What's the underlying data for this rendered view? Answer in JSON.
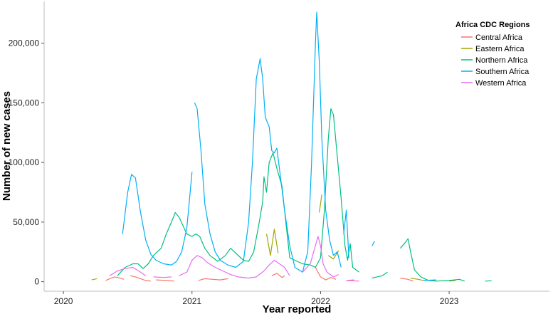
{
  "chart_data": {
    "type": "line",
    "title": "",
    "xlabel": "Year reported",
    "ylabel": "Number of new cases",
    "xlim": [
      2019.85,
      2023.78
    ],
    "ylim": [
      -8000,
      235000
    ],
    "x_ticks": [
      2020,
      2021,
      2022,
      2023
    ],
    "x_tick_labels": [
      "2020",
      "2021",
      "2022",
      "2023"
    ],
    "y_ticks": [
      0,
      50000,
      100000,
      150000,
      200000
    ],
    "y_tick_labels": [
      "0",
      "50,000",
      "100,000",
      "150,000",
      "200,000"
    ],
    "grid": false,
    "legend": {
      "title": "Africa CDC Regions",
      "position": "top-right"
    },
    "series": [
      {
        "name": "Central Africa",
        "color": "#F8766D",
        "segments": [
          [
            [
              2020.33,
              1000
            ],
            [
              2020.36,
              2500
            ],
            [
              2020.4,
              4000
            ],
            [
              2020.44,
              3000
            ],
            [
              2020.47,
              2000
            ]
          ],
          [
            [
              2020.52,
              5000
            ],
            [
              2020.56,
              4000
            ],
            [
              2020.6,
              2500
            ],
            [
              2020.64,
              1000
            ],
            [
              2020.68,
              500
            ]
          ],
          [
            [
              2020.72,
              1500
            ],
            [
              2020.8,
              1000
            ],
            [
              2020.86,
              500
            ]
          ],
          [
            [
              2021.05,
              1000
            ],
            [
              2021.1,
              2500
            ],
            [
              2021.16,
              2000
            ],
            [
              2021.22,
              1500
            ],
            [
              2021.28,
              2500
            ]
          ],
          [
            [
              2021.62,
              5000
            ],
            [
              2021.66,
              7000
            ],
            [
              2021.7,
              3500
            ],
            [
              2021.72,
              5000
            ]
          ],
          [
            [
              2021.96,
              12000
            ],
            [
              2022.0,
              4000
            ],
            [
              2022.04,
              1500
            ],
            [
              2022.08,
              3500
            ],
            [
              2022.12,
              2000
            ]
          ],
          [
            [
              2022.2,
              1000
            ],
            [
              2022.26,
              1500
            ]
          ],
          [
            [
              2022.62,
              3000
            ],
            [
              2022.68,
              2000
            ],
            [
              2022.72,
              500
            ]
          ]
        ]
      },
      {
        "name": "Eastern Africa",
        "color": "#A3A500",
        "segments": [
          [
            [
              2020.22,
              1500
            ],
            [
              2020.26,
              2500
            ]
          ],
          [
            [
              2021.58,
              40000
            ],
            [
              2021.61,
              22000
            ],
            [
              2021.64,
              44000
            ],
            [
              2021.67,
              24000
            ]
          ],
          [
            [
              2021.99,
              58000
            ],
            [
              2022.01,
              73000
            ]
          ],
          [
            [
              2022.06,
              22000
            ],
            [
              2022.1,
              19000
            ],
            [
              2022.14,
              26000
            ]
          ],
          [
            [
              2022.7,
              3000
            ],
            [
              2022.76,
              2000
            ],
            [
              2022.8,
              1000
            ]
          ],
          [
            [
              2023.0,
              500
            ],
            [
              2023.05,
              1000
            ]
          ]
        ]
      },
      {
        "name": "Northern Africa",
        "color": "#00BF7D",
        "segments": [
          [
            [
              2020.42,
              5000
            ],
            [
              2020.48,
              12000
            ],
            [
              2020.54,
              15000
            ],
            [
              2020.58,
              15000
            ],
            [
              2020.62,
              11000
            ],
            [
              2020.66,
              15000
            ],
            [
              2020.7,
              22000
            ],
            [
              2020.76,
              28000
            ],
            [
              2020.8,
              40000
            ],
            [
              2020.84,
              50000
            ],
            [
              2020.87,
              58000
            ],
            [
              2020.9,
              54000
            ],
            [
              2020.93,
              47000
            ],
            [
              2020.96,
              40000
            ],
            [
              2021.0,
              38000
            ],
            [
              2021.03,
              40000
            ],
            [
              2021.06,
              38000
            ],
            [
              2021.1,
              28000
            ],
            [
              2021.14,
              22000
            ],
            [
              2021.2,
              17000
            ],
            [
              2021.26,
              22000
            ],
            [
              2021.3,
              28000
            ],
            [
              2021.34,
              24000
            ],
            [
              2021.4,
              18000
            ],
            [
              2021.44,
              17000
            ],
            [
              2021.48,
              25000
            ],
            [
              2021.52,
              48000
            ],
            [
              2021.55,
              67000
            ],
            [
              2021.56,
              88000
            ],
            [
              2021.58,
              75000
            ],
            [
              2021.6,
              100000
            ],
            [
              2021.63,
              108000
            ],
            [
              2021.66,
              95000
            ],
            [
              2021.7,
              80000
            ],
            [
              2021.73,
              50000
            ],
            [
              2021.76,
              20000
            ],
            [
              2021.8,
              18000
            ],
            [
              2021.86,
              15000
            ],
            [
              2021.92,
              14000
            ],
            [
              2021.96,
              12000
            ],
            [
              2022.0,
              20000
            ],
            [
              2022.03,
              60000
            ],
            [
              2022.06,
              120000
            ],
            [
              2022.08,
              145000
            ],
            [
              2022.1,
              140000
            ],
            [
              2022.13,
              105000
            ],
            [
              2022.16,
              70000
            ],
            [
              2022.19,
              30000
            ],
            [
              2022.21,
              18000
            ],
            [
              2022.23,
              32000
            ],
            [
              2022.25,
              12000
            ],
            [
              2022.3,
              8000
            ]
          ],
          [
            [
              2022.4,
              3000
            ],
            [
              2022.48,
              5000
            ],
            [
              2022.52,
              8000
            ]
          ],
          [
            [
              2022.62,
              28000
            ],
            [
              2022.66,
              33000
            ],
            [
              2022.68,
              36000
            ],
            [
              2022.7,
              25000
            ],
            [
              2022.73,
              10000
            ],
            [
              2022.78,
              4000
            ],
            [
              2022.84,
              1000
            ],
            [
              2022.9,
              500
            ],
            [
              2023.0,
              1000
            ],
            [
              2023.08,
              2000
            ],
            [
              2023.12,
              500
            ]
          ],
          [
            [
              2023.28,
              500
            ],
            [
              2023.33,
              800
            ]
          ]
        ]
      },
      {
        "name": "Southern Africa",
        "color": "#00B0F6",
        "segments": [
          [
            [
              2020.46,
              40000
            ],
            [
              2020.5,
              75000
            ],
            [
              2020.53,
              90000
            ],
            [
              2020.56,
              87000
            ],
            [
              2020.6,
              58000
            ],
            [
              2020.64,
              35000
            ],
            [
              2020.68,
              23000
            ],
            [
              2020.72,
              18000
            ],
            [
              2020.78,
              15000
            ],
            [
              2020.84,
              14000
            ],
            [
              2020.88,
              17000
            ],
            [
              2020.92,
              25000
            ],
            [
              2020.96,
              45000
            ],
            [
              2020.98,
              68000
            ],
            [
              2021.0,
              92000
            ]
          ],
          [
            [
              2021.02,
              150000
            ],
            [
              2021.04,
              145000
            ],
            [
              2021.07,
              110000
            ],
            [
              2021.1,
              65000
            ],
            [
              2021.14,
              40000
            ],
            [
              2021.18,
              25000
            ],
            [
              2021.22,
              18000
            ],
            [
              2021.28,
              14000
            ],
            [
              2021.34,
              12000
            ],
            [
              2021.4,
              17000
            ],
            [
              2021.44,
              50000
            ],
            [
              2021.47,
              100000
            ],
            [
              2021.5,
              170000
            ],
            [
              2021.53,
              187000
            ],
            [
              2021.55,
              170000
            ],
            [
              2021.57,
              138000
            ],
            [
              2021.6,
              130000
            ],
            [
              2021.62,
              110000
            ],
            [
              2021.64,
              108000
            ],
            [
              2021.66,
              112000
            ],
            [
              2021.68,
              95000
            ],
            [
              2021.72,
              60000
            ],
            [
              2021.76,
              30000
            ],
            [
              2021.8,
              12000
            ],
            [
              2021.86,
              8000
            ],
            [
              2021.9,
              25000
            ],
            [
              2021.93,
              100000
            ],
            [
              2021.96,
              200000
            ],
            [
              2021.97,
              226000
            ],
            [
              2021.99,
              185000
            ],
            [
              2022.01,
              120000
            ],
            [
              2022.04,
              60000
            ],
            [
              2022.07,
              35000
            ],
            [
              2022.1,
              22000
            ],
            [
              2022.13,
              25000
            ],
            [
              2022.16,
              12000
            ]
          ],
          [
            [
              2022.18,
              40000
            ],
            [
              2022.2,
              60000
            ],
            [
              2022.22,
              20000
            ]
          ],
          [
            [
              2022.4,
              30000
            ],
            [
              2022.42,
              34000
            ]
          ],
          [
            [
              2022.8,
              1000
            ],
            [
              2022.9,
              1500
            ]
          ]
        ]
      },
      {
        "name": "Western Africa",
        "color": "#E76BF3",
        "segments": [
          [
            [
              2020.36,
              5000
            ],
            [
              2020.42,
              9000
            ],
            [
              2020.48,
              11000
            ],
            [
              2020.54,
              12000
            ],
            [
              2020.6,
              8000
            ],
            [
              2020.64,
              5000
            ]
          ],
          [
            [
              2020.7,
              4000
            ],
            [
              2020.78,
              3500
            ],
            [
              2020.84,
              4000
            ]
          ],
          [
            [
              2020.9,
              5000
            ],
            [
              2020.96,
              8000
            ],
            [
              2021.0,
              18000
            ],
            [
              2021.04,
              22000
            ],
            [
              2021.08,
              20000
            ],
            [
              2021.12,
              16000
            ],
            [
              2021.18,
              12000
            ],
            [
              2021.24,
              9000
            ],
            [
              2021.3,
              6000
            ],
            [
              2021.36,
              4000
            ],
            [
              2021.44,
              3000
            ],
            [
              2021.5,
              4000
            ],
            [
              2021.56,
              9000
            ],
            [
              2021.6,
              14000
            ],
            [
              2021.64,
              18000
            ],
            [
              2021.68,
              15000
            ],
            [
              2021.72,
              12000
            ],
            [
              2021.76,
              5000
            ]
          ],
          [
            [
              2021.86,
              8000
            ],
            [
              2021.92,
              15000
            ],
            [
              2021.98,
              38000
            ],
            [
              2022.0,
              30000
            ],
            [
              2022.02,
              15000
            ],
            [
              2022.05,
              8000
            ],
            [
              2022.1,
              4000
            ],
            [
              2022.14,
              6000
            ]
          ],
          [
            [
              2022.2,
              1000
            ],
            [
              2022.3,
              500
            ]
          ]
        ]
      }
    ]
  }
}
